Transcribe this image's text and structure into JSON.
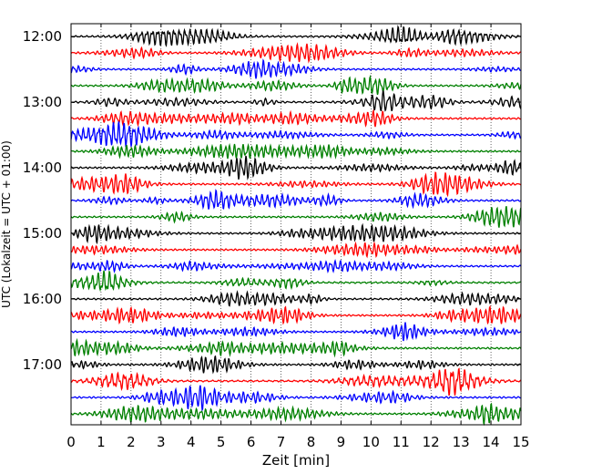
{
  "chart_data": {
    "type": "line",
    "title": "",
    "xlabel": "Zeit  [min]",
    "ylabel": "UTC (Lokalzeit = UTC + 01:00)",
    "xlim": [
      0,
      15
    ],
    "x_ticks": [
      "0",
      "1",
      "2",
      "3",
      "4",
      "5",
      "6",
      "7",
      "8",
      "9",
      "10",
      "11",
      "12",
      "13",
      "14",
      "15"
    ],
    "y_ticks": [
      "12:00",
      "13:00",
      "14:00",
      "15:00",
      "16:00",
      "17:00"
    ],
    "trace_colors": [
      "#000000",
      "#ff0000",
      "#0000ff",
      "#008000"
    ],
    "trace_count": 24,
    "trace_interval_minutes": 15,
    "start_time": "12:00",
    "grid": "vertical dotted at each minute"
  }
}
